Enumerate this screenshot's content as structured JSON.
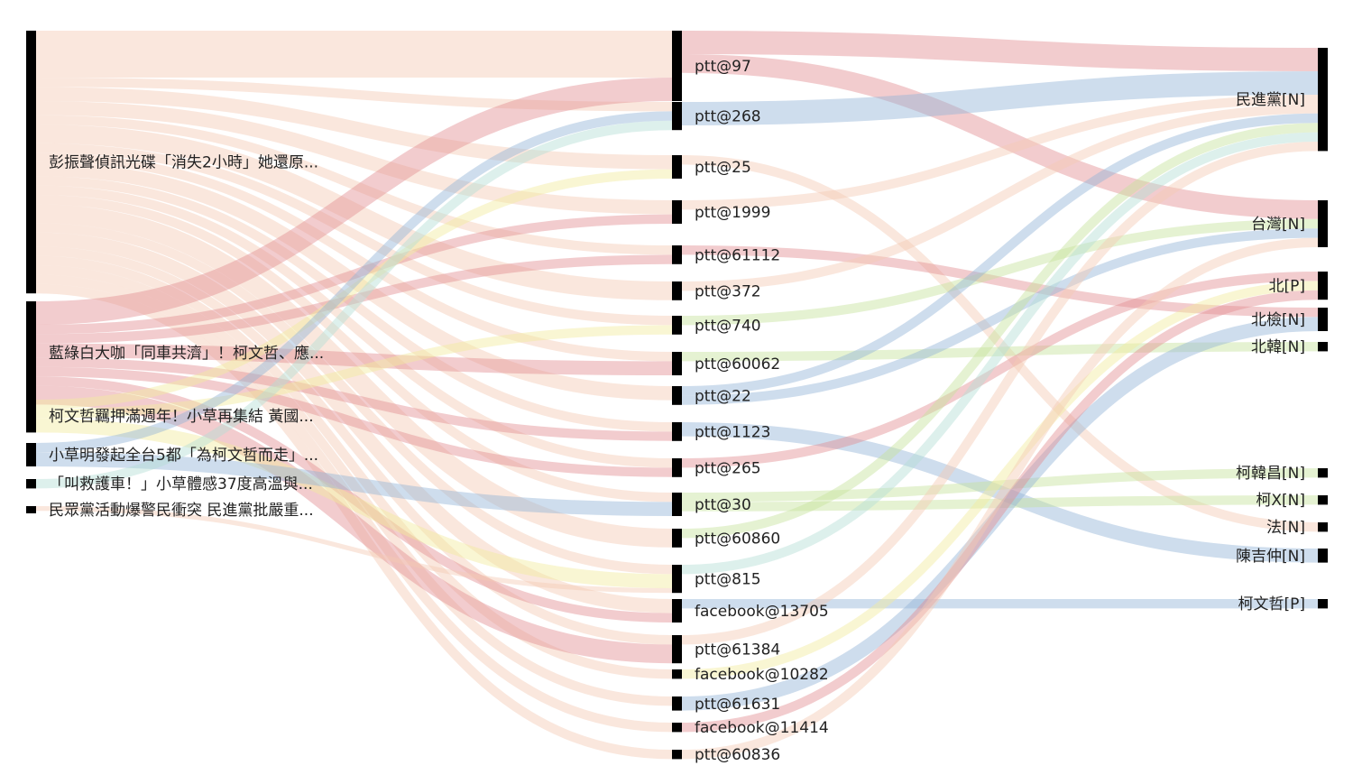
{
  "diagram": {
    "type": "sankey",
    "link_opacity": 0.45,
    "colors": {
      "salmon": "#f3c9b3",
      "red": "#e38e92",
      "blue": "#93b4d8",
      "teal": "#b3ddd4",
      "yellow": "#f1ec9d",
      "green": "#c5e29b",
      "node": "#000000"
    },
    "columns": [
      {
        "role": "articles",
        "nodes": [
          {
            "id": "a1",
            "label": "彭振聲偵訊光碟「消失2小時」她還原..."
          },
          {
            "id": "a2",
            "label": "藍綠白大咖「同車共濟」！柯文哲、應..."
          },
          {
            "id": "a3",
            "label": "柯文哲羈押滿週年！小草再集結 黃國..."
          },
          {
            "id": "a4",
            "label": "小草明發起全台5都「為柯文哲而走」..."
          },
          {
            "id": "a5",
            "label": "「叫救護車！」小草體感37度高溫與..."
          },
          {
            "id": "a6",
            "label": "民眾黨活動爆警民衝突 民進黨批嚴重..."
          }
        ]
      },
      {
        "role": "users",
        "nodes": [
          {
            "id": "u1",
            "label": "ptt@97"
          },
          {
            "id": "u2",
            "label": "ptt@268"
          },
          {
            "id": "u3",
            "label": "ptt@25"
          },
          {
            "id": "u4",
            "label": "ptt@1999"
          },
          {
            "id": "u5",
            "label": "ptt@61112"
          },
          {
            "id": "u6",
            "label": "ptt@372"
          },
          {
            "id": "u7",
            "label": "ptt@740"
          },
          {
            "id": "u8",
            "label": "ptt@60062"
          },
          {
            "id": "u9",
            "label": "ptt@22"
          },
          {
            "id": "u10",
            "label": "ptt@1123"
          },
          {
            "id": "u11",
            "label": "ptt@265"
          },
          {
            "id": "u12",
            "label": "ptt@30"
          },
          {
            "id": "u13",
            "label": "ptt@60860"
          },
          {
            "id": "u14",
            "label": "ptt@815"
          },
          {
            "id": "u15",
            "label": "facebook@13705"
          },
          {
            "id": "u16",
            "label": "ptt@61384"
          },
          {
            "id": "u17",
            "label": "facebook@10282"
          },
          {
            "id": "u18",
            "label": "ptt@61631"
          },
          {
            "id": "u19",
            "label": "facebook@11414"
          },
          {
            "id": "u20",
            "label": "ptt@60836"
          }
        ]
      },
      {
        "role": "entities",
        "nodes": [
          {
            "id": "e1",
            "label": "民進黨[N]"
          },
          {
            "id": "e2",
            "label": "台灣[N]"
          },
          {
            "id": "e3",
            "label": "北[P]"
          },
          {
            "id": "e4",
            "label": "北檢[N]"
          },
          {
            "id": "e5",
            "label": "北韓[N]"
          },
          {
            "id": "e6",
            "label": "柯韓昌[N]"
          },
          {
            "id": "e7",
            "label": "柯X[N]"
          },
          {
            "id": "e8",
            "label": "法[N]"
          },
          {
            "id": "e9",
            "label": "陳吉仲[N]"
          },
          {
            "id": "e10",
            "label": "柯文哲[P]"
          }
        ]
      }
    ],
    "links": [
      {
        "source": "a1",
        "target": "u1",
        "value": 10,
        "color": "salmon"
      },
      {
        "source": "a1",
        "target": "u2",
        "value": 2,
        "color": "salmon"
      },
      {
        "source": "a1",
        "target": "u3",
        "value": 3,
        "color": "salmon"
      },
      {
        "source": "a1",
        "target": "u4",
        "value": 3,
        "color": "salmon"
      },
      {
        "source": "a1",
        "target": "u5",
        "value": 2,
        "color": "salmon"
      },
      {
        "source": "a1",
        "target": "u6",
        "value": 4,
        "color": "salmon"
      },
      {
        "source": "a1",
        "target": "u7",
        "value": 2,
        "color": "salmon"
      },
      {
        "source": "a1",
        "target": "u8",
        "value": 2,
        "color": "salmon"
      },
      {
        "source": "a1",
        "target": "u9",
        "value": 3,
        "color": "salmon"
      },
      {
        "source": "a1",
        "target": "u10",
        "value": 2,
        "color": "salmon"
      },
      {
        "source": "a1",
        "target": "u11",
        "value": 2,
        "color": "salmon"
      },
      {
        "source": "a1",
        "target": "u12",
        "value": 2,
        "color": "salmon"
      },
      {
        "source": "a1",
        "target": "u13",
        "value": 4,
        "color": "salmon"
      },
      {
        "source": "a1",
        "target": "u14",
        "value": 2,
        "color": "salmon"
      },
      {
        "source": "a1",
        "target": "u15",
        "value": 3,
        "color": "salmon"
      },
      {
        "source": "a1",
        "target": "u16",
        "value": 2,
        "color": "salmon"
      },
      {
        "source": "a1",
        "target": "u17",
        "value": 2,
        "color": "salmon"
      },
      {
        "source": "a1",
        "target": "u18",
        "value": 2,
        "color": "salmon"
      },
      {
        "source": "a1",
        "target": "u19",
        "value": 2,
        "color": "salmon"
      },
      {
        "source": "a1",
        "target": "u20",
        "value": 2,
        "color": "salmon"
      },
      {
        "source": "a2",
        "target": "u1",
        "value": 5,
        "color": "red"
      },
      {
        "source": "a2",
        "target": "u4",
        "value": 2,
        "color": "red"
      },
      {
        "source": "a2",
        "target": "u5",
        "value": 2,
        "color": "red"
      },
      {
        "source": "a2",
        "target": "u8",
        "value": 3,
        "color": "red"
      },
      {
        "source": "a2",
        "target": "u10",
        "value": 2,
        "color": "red"
      },
      {
        "source": "a2",
        "target": "u11",
        "value": 2,
        "color": "red"
      },
      {
        "source": "a2",
        "target": "u15",
        "value": 2,
        "color": "red"
      },
      {
        "source": "a2",
        "target": "u16",
        "value": 4,
        "color": "red"
      },
      {
        "source": "a3",
        "target": "u3",
        "value": 2,
        "color": "yellow"
      },
      {
        "source": "a3",
        "target": "u7",
        "value": 2,
        "color": "yellow"
      },
      {
        "source": "a3",
        "target": "u14",
        "value": 3,
        "color": "yellow"
      },
      {
        "source": "a4",
        "target": "u2",
        "value": 2,
        "color": "blue"
      },
      {
        "source": "a4",
        "target": "u12",
        "value": 3,
        "color": "blue"
      },
      {
        "source": "a5",
        "target": "u2",
        "value": 2,
        "color": "teal"
      },
      {
        "source": "a6",
        "target": "u14",
        "value": 1,
        "color": "salmon"
      },
      {
        "source": "u1",
        "target": "e1",
        "value": 5,
        "color": "red"
      },
      {
        "source": "u1",
        "target": "e2",
        "value": 4,
        "color": "red"
      },
      {
        "source": "u2",
        "target": "e1",
        "value": 5,
        "color": "blue"
      },
      {
        "source": "u3",
        "target": "e8",
        "value": 2,
        "color": "salmon"
      },
      {
        "source": "u4",
        "target": "e1",
        "value": 2,
        "color": "salmon"
      },
      {
        "source": "u5",
        "target": "e4",
        "value": 2,
        "color": "red"
      },
      {
        "source": "u6",
        "target": "e1",
        "value": 2,
        "color": "salmon"
      },
      {
        "source": "u7",
        "target": "e2",
        "value": 2,
        "color": "green"
      },
      {
        "source": "u8",
        "target": "e5",
        "value": 2,
        "color": "green"
      },
      {
        "source": "u9",
        "target": "e1",
        "value": 2,
        "color": "blue"
      },
      {
        "source": "u9",
        "target": "e2",
        "value": 2,
        "color": "blue"
      },
      {
        "source": "u10",
        "target": "e9",
        "value": 3,
        "color": "blue"
      },
      {
        "source": "u11",
        "target": "e3",
        "value": 2,
        "color": "red"
      },
      {
        "source": "u12",
        "target": "e6",
        "value": 2,
        "color": "green"
      },
      {
        "source": "u12",
        "target": "e7",
        "value": 2,
        "color": "green"
      },
      {
        "source": "u13",
        "target": "e1",
        "value": 2,
        "color": "green"
      },
      {
        "source": "u14",
        "target": "e1",
        "value": 2,
        "color": "teal"
      },
      {
        "source": "u15",
        "target": "e10",
        "value": 2,
        "color": "blue"
      },
      {
        "source": "u16",
        "target": "e1",
        "value": 2,
        "color": "salmon"
      },
      {
        "source": "u17",
        "target": "e3",
        "value": 2,
        "color": "yellow"
      },
      {
        "source": "u18",
        "target": "e4",
        "value": 3,
        "color": "blue"
      },
      {
        "source": "u19",
        "target": "e3",
        "value": 2,
        "color": "red"
      },
      {
        "source": "u20",
        "target": "e2",
        "value": 2,
        "color": "salmon"
      }
    ]
  }
}
